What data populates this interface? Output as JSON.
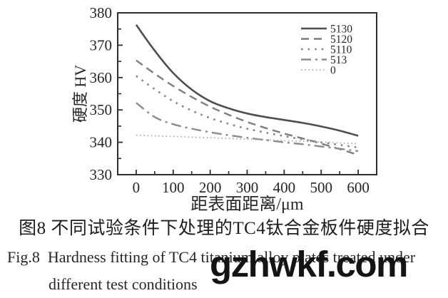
{
  "figure": {
    "caption_zh": "图8  不同试验条件下处理的TC4钛合金板件硬度拟合",
    "caption_en_line1": "Fig.8  Hardness fitting of TC4 titanium alloy plates treated under",
    "caption_en_line2": "different test conditions",
    "watermark": "gzhwkf.com"
  },
  "colors": {
    "axis": "#2e2e2e",
    "text": "#262626",
    "background": "#ffffff",
    "watermark": "#141414"
  },
  "chart_data": {
    "type": "line",
    "title": "",
    "xlabel": "距表面距离/μm",
    "ylabel": "硬度 HV",
    "xlim": [
      -50,
      650
    ],
    "ylim": [
      330,
      380
    ],
    "grid": false,
    "legend_position": "top-right-inside",
    "x_ticks_labeled": [
      0,
      100,
      200,
      300,
      400,
      500,
      600
    ],
    "x_ticks_minor": [
      50,
      150,
      250,
      350,
      450,
      550
    ],
    "y_ticks_labeled": [
      330,
      340,
      350,
      360,
      370,
      380
    ],
    "y_ticks_minor": [
      335,
      345,
      355,
      365,
      375
    ],
    "x": [
      0,
      50,
      100,
      150,
      200,
      250,
      300,
      350,
      400,
      450,
      500,
      550,
      600
    ],
    "series": [
      {
        "name": "5130",
        "line_style": "solid",
        "color": "#4f4f4f",
        "values": [
          376.3,
          368.3,
          361.4,
          356.3,
          352.7,
          350.5,
          348.9,
          347.8,
          346.9,
          346.0,
          344.9,
          343.6,
          342.0
        ]
      },
      {
        "name": "5120",
        "line_style": "dash",
        "color": "#7d7d7d",
        "values": [
          365.3,
          361.2,
          357.4,
          354.0,
          351.0,
          348.5,
          346.3,
          344.4,
          342.7,
          341.2,
          339.6,
          337.9,
          336.1
        ]
      },
      {
        "name": "5110",
        "line_style": "dot",
        "color": "#858585",
        "values": [
          360.5,
          356.4,
          352.7,
          349.8,
          347.5,
          345.7,
          344.2,
          343.0,
          341.9,
          340.9,
          340.0,
          339.2,
          338.4
        ]
      },
      {
        "name": "513",
        "line_style": "dashdot",
        "color": "#8c8c8c",
        "values": [
          352.2,
          347.8,
          345.6,
          344.2,
          343.1,
          342.2,
          341.4,
          340.7,
          340.0,
          339.4,
          338.7,
          338.0,
          337.3
        ]
      },
      {
        "name": "0",
        "line_style": "finedot",
        "color": "#a9a9a9",
        "values": [
          342.2,
          342.0,
          341.8,
          341.6,
          341.4,
          341.2,
          341.0,
          340.8,
          340.5,
          340.3,
          340.1,
          339.8,
          339.6
        ]
      }
    ]
  }
}
